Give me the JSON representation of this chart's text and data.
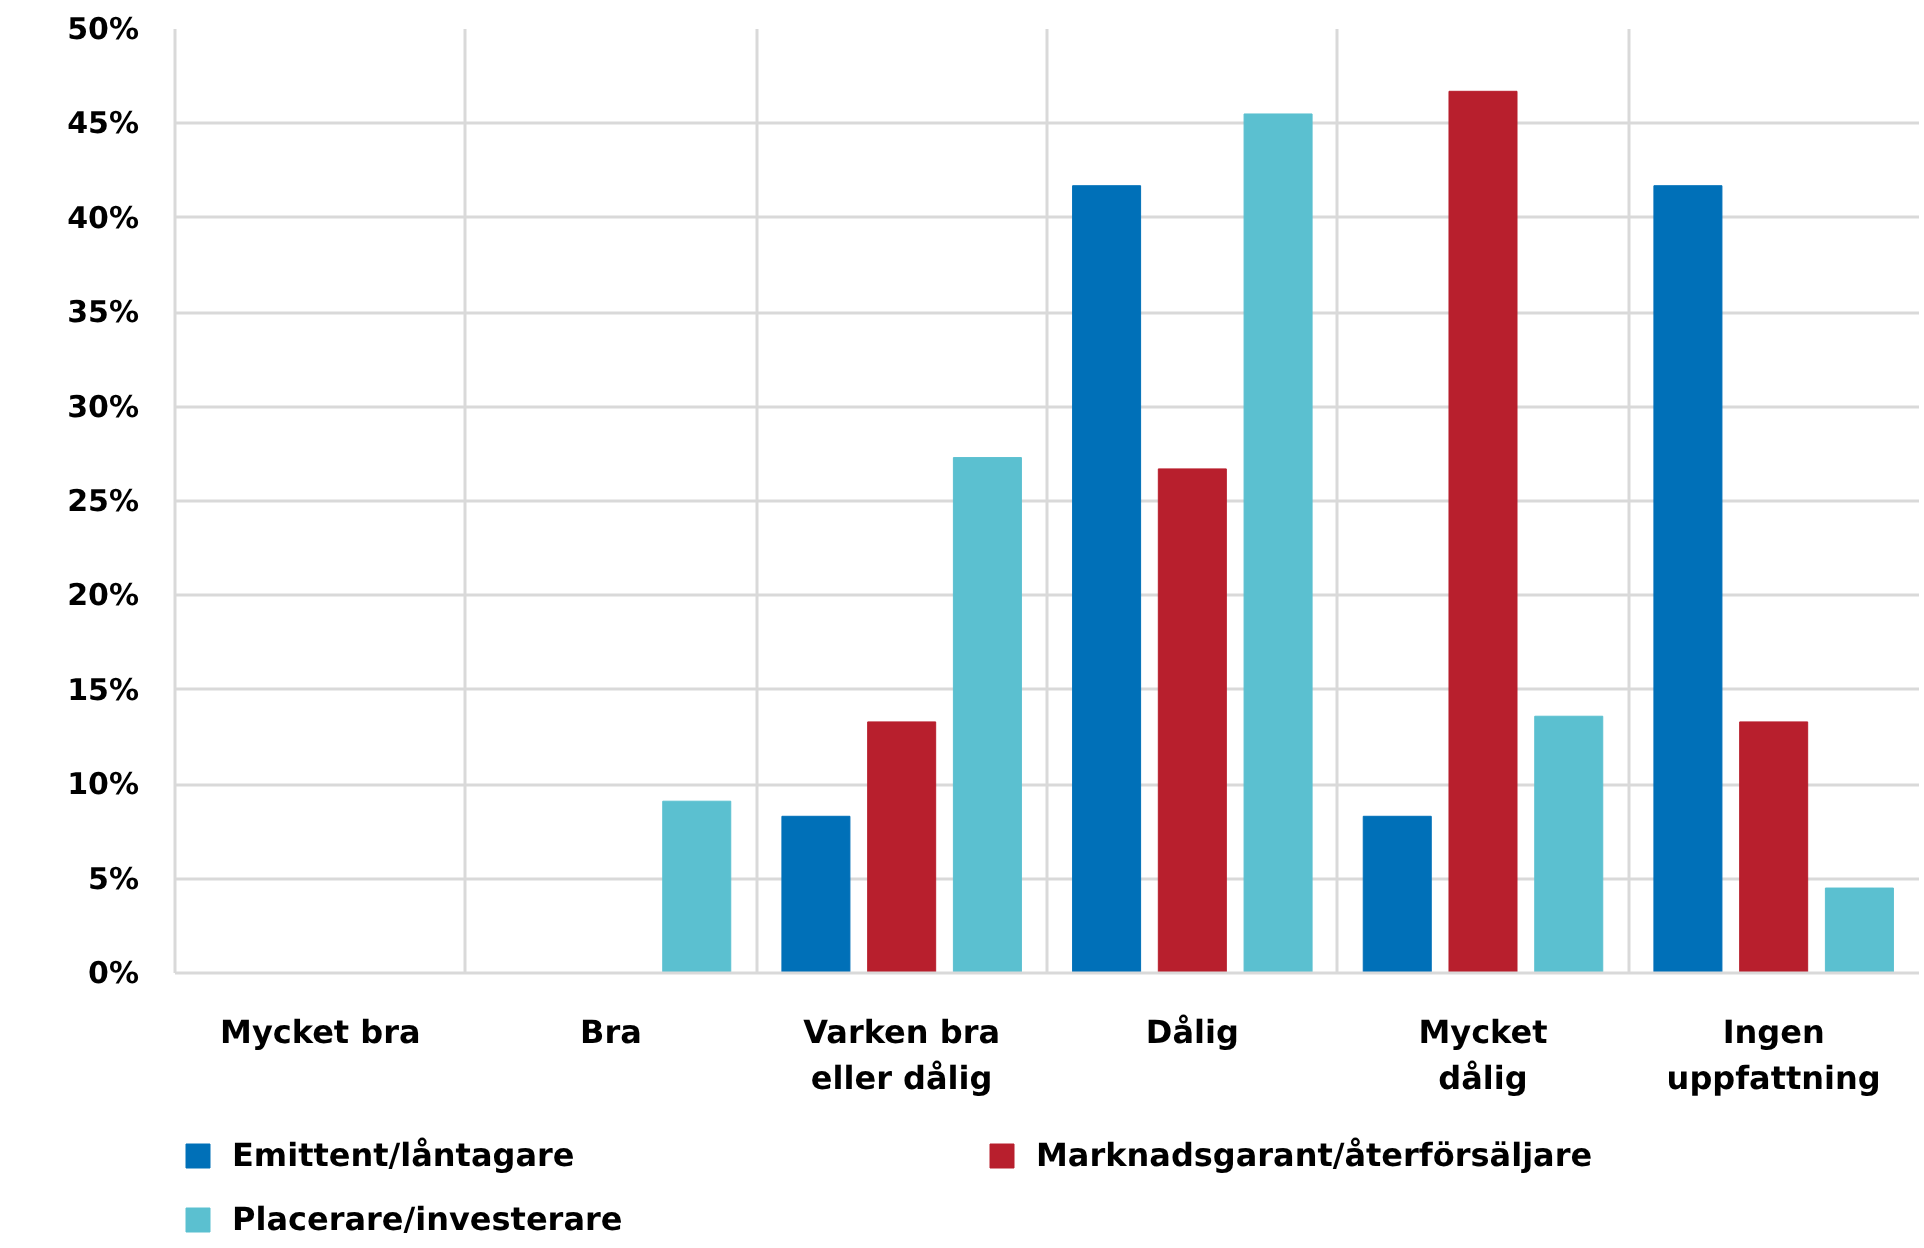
{
  "chart_data": {
    "type": "bar",
    "categories": [
      "Mycket bra",
      "Bra",
      "Varken bra eller dålig",
      "Dålig",
      "Mycket dålig",
      "Ingen uppfattning"
    ],
    "series": [
      {
        "name": "Emittent/låntagare",
        "color": "#0070b8",
        "values": [
          0,
          0,
          8.3,
          41.7,
          8.3,
          41.7
        ]
      },
      {
        "name": "Marknadsgarant/återförsäljare",
        "color": "#b81f2d",
        "values": [
          0,
          0,
          13.3,
          26.7,
          46.7,
          13.3
        ]
      },
      {
        "name": "Placerare/investerare",
        "color": "#5bc0d0",
        "values": [
          0,
          9.1,
          27.3,
          45.5,
          13.6,
          4.5
        ]
      }
    ],
    "ylim": [
      0,
      50
    ],
    "yticks": [
      {
        "value": 0,
        "label": "0%"
      },
      {
        "value": 5,
        "label": "5%"
      },
      {
        "value": 10,
        "label": "10%"
      },
      {
        "value": 15,
        "label": "15%"
      },
      {
        "value": 20,
        "label": "20%"
      },
      {
        "value": 25,
        "label": "25%"
      },
      {
        "value": 30,
        "label": "30%"
      },
      {
        "value": 35,
        "label": "35%"
      },
      {
        "value": 40,
        "label": "40%"
      },
      {
        "value": 45,
        "label": "45%"
      },
      {
        "value": 50,
        "label": "50%"
      }
    ],
    "grid": true,
    "legend": "bottom"
  }
}
